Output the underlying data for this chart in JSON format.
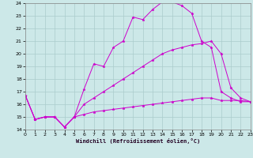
{
  "xlabel": "Windchill (Refroidissement éolien,°C)",
  "xlim": [
    0,
    23
  ],
  "ylim": [
    14,
    24
  ],
  "xticks": [
    0,
    1,
    2,
    3,
    4,
    5,
    6,
    7,
    8,
    9,
    10,
    11,
    12,
    13,
    14,
    15,
    16,
    17,
    18,
    19,
    20,
    21,
    22,
    23
  ],
  "yticks": [
    14,
    15,
    16,
    17,
    18,
    19,
    20,
    21,
    22,
    23,
    24
  ],
  "bg_color": "#cce8e8",
  "grid_color": "#aacccc",
  "line_color": "#cc00cc",
  "series": [
    {
      "x": [
        0,
        1,
        2,
        3,
        4,
        5,
        6,
        7,
        8,
        9,
        10,
        11,
        12,
        13,
        14,
        15,
        16,
        17,
        18,
        19,
        20,
        21,
        22,
        23
      ],
      "y": [
        16.7,
        14.8,
        15.0,
        15.0,
        14.2,
        15.0,
        17.2,
        19.2,
        19.0,
        20.5,
        21.0,
        22.9,
        22.7,
        23.5,
        24.1,
        24.1,
        23.8,
        23.2,
        21.0,
        20.5,
        17.0,
        16.5,
        16.2,
        16.2
      ]
    },
    {
      "x": [
        0,
        1,
        2,
        3,
        4,
        5,
        6,
        7,
        8,
        9,
        10,
        11,
        12,
        13,
        14,
        15,
        16,
        17,
        18,
        19,
        20,
        21,
        22,
        23
      ],
      "y": [
        16.7,
        14.8,
        15.0,
        15.0,
        14.2,
        15.0,
        16.0,
        16.5,
        17.0,
        17.5,
        18.0,
        18.5,
        19.0,
        19.5,
        20.0,
        20.3,
        20.5,
        20.7,
        20.8,
        21.0,
        20.0,
        17.3,
        16.5,
        16.2
      ]
    },
    {
      "x": [
        0,
        1,
        2,
        3,
        4,
        5,
        6,
        7,
        8,
        9,
        10,
        11,
        12,
        13,
        14,
        15,
        16,
        17,
        18,
        19,
        20,
        21,
        22,
        23
      ],
      "y": [
        16.7,
        14.8,
        15.0,
        15.0,
        14.2,
        15.0,
        15.2,
        15.4,
        15.5,
        15.6,
        15.7,
        15.8,
        15.9,
        16.0,
        16.1,
        16.2,
        16.3,
        16.4,
        16.5,
        16.5,
        16.3,
        16.3,
        16.3,
        16.2
      ]
    }
  ]
}
